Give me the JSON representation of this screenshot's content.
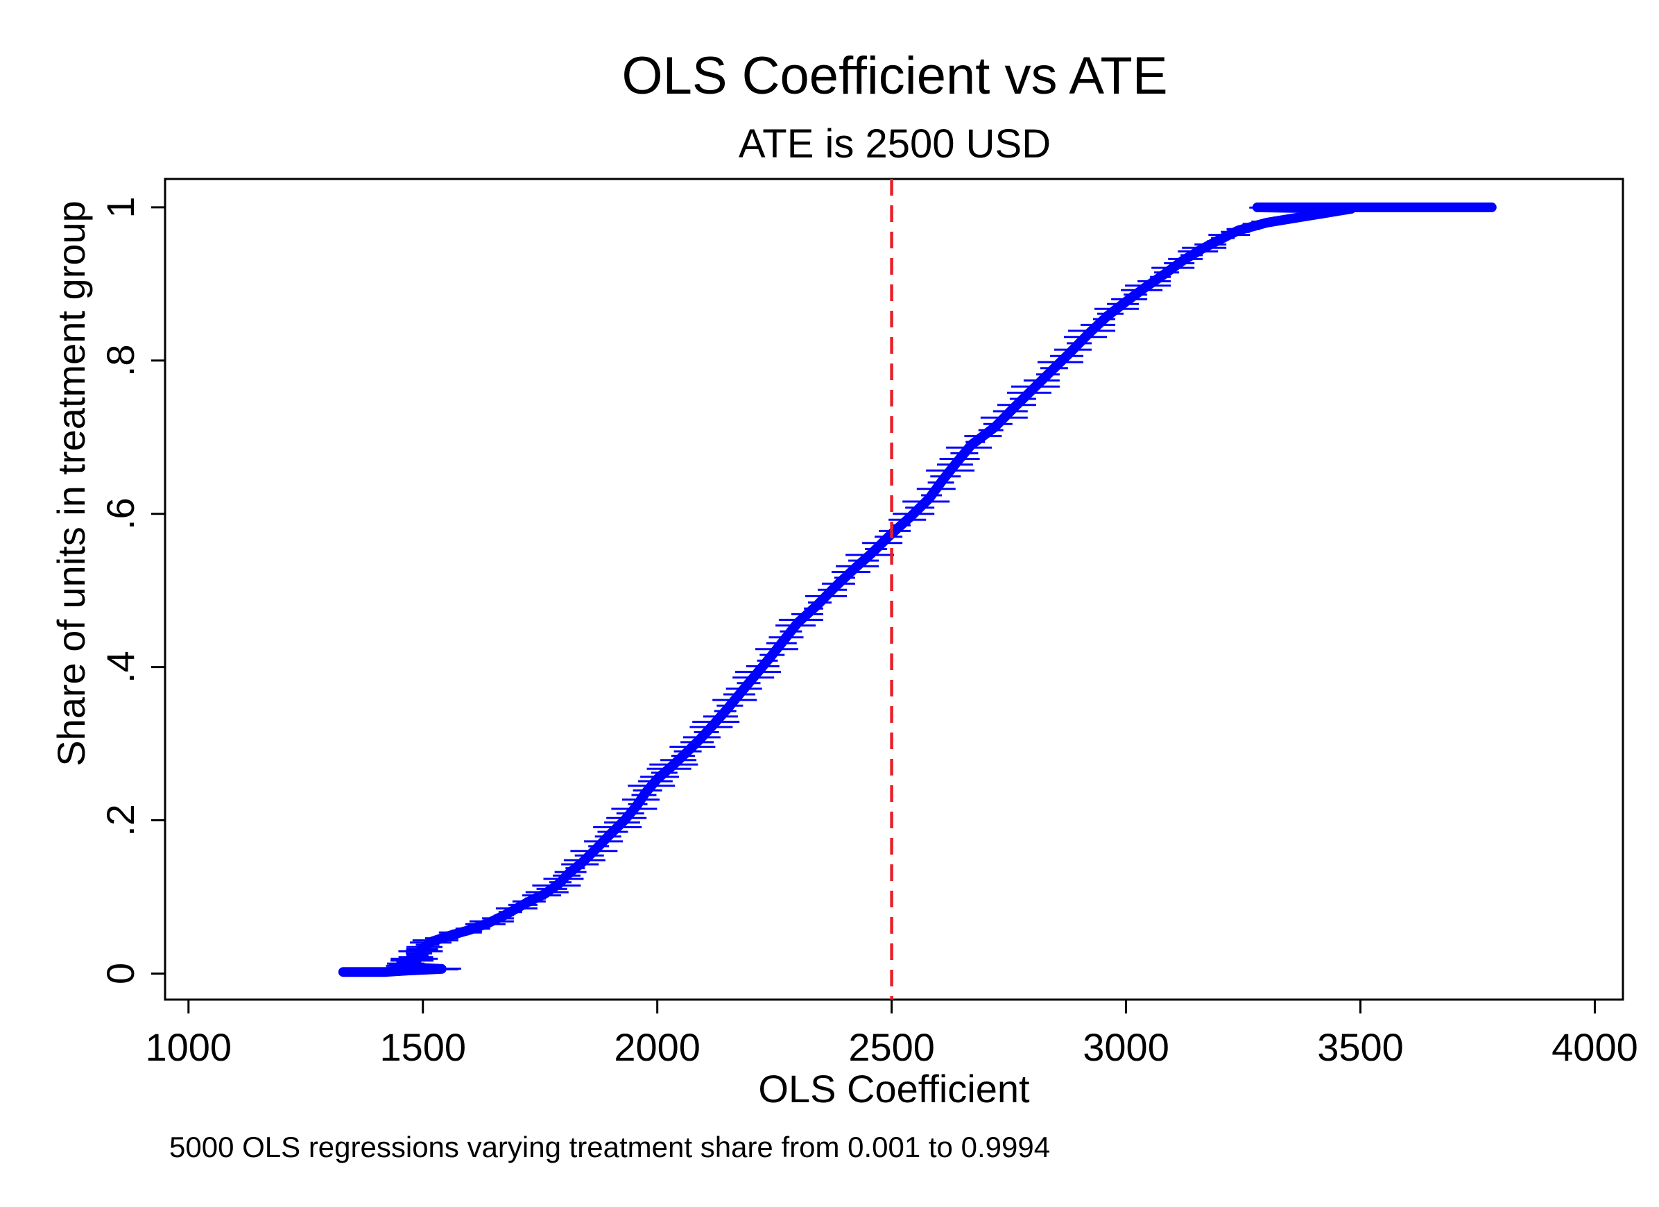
{
  "chart_data": {
    "type": "line",
    "title": "OLS Coefficient vs ATE",
    "subtitle": "ATE is 2500 USD",
    "xlabel": "OLS Coefficient",
    "ylabel": "Share of units in treatment group",
    "note": "5000 OLS regressions varying treatment share from 0.001 to 0.9994",
    "xlim": [
      950,
      4060
    ],
    "ylim": [
      -0.034,
      1.037
    ],
    "x_ticks": [
      1000,
      1500,
      2000,
      2500,
      3000,
      3500,
      4000
    ],
    "x_tick_labels": [
      "1000",
      "1500",
      "2000",
      "2500",
      "3000",
      "3500",
      "4000"
    ],
    "y_ticks": [
      0,
      0.2,
      0.4,
      0.6,
      0.8,
      1
    ],
    "y_tick_labels": [
      "0",
      ".2",
      ".4",
      ".6",
      ".8",
      "1"
    ],
    "grid": false,
    "reference_line": {
      "x": 2500,
      "style": "dashed",
      "color": "#e8202a"
    },
    "series": [
      {
        "color": "#0000ff",
        "points": [
          [
            1330,
            0.002
          ],
          [
            1420,
            0.002
          ],
          [
            1470,
            0.004
          ],
          [
            1540,
            0.006
          ],
          [
            1480,
            0.008
          ],
          [
            1460,
            0.012
          ],
          [
            1480,
            0.018
          ],
          [
            1490,
            0.025
          ],
          [
            1500,
            0.033
          ],
          [
            1520,
            0.042
          ],
          [
            1560,
            0.05
          ],
          [
            1600,
            0.057
          ],
          [
            1640,
            0.066
          ],
          [
            1680,
            0.078
          ],
          [
            1720,
            0.092
          ],
          [
            1760,
            0.104
          ],
          [
            1790,
            0.117
          ],
          [
            1810,
            0.13
          ],
          [
            1840,
            0.145
          ],
          [
            1870,
            0.163
          ],
          [
            1900,
            0.182
          ],
          [
            1930,
            0.2
          ],
          [
            1955,
            0.218
          ],
          [
            1975,
            0.236
          ],
          [
            2000,
            0.254
          ],
          [
            2030,
            0.27
          ],
          [
            2060,
            0.287
          ],
          [
            2090,
            0.305
          ],
          [
            2120,
            0.325
          ],
          [
            2150,
            0.346
          ],
          [
            2180,
            0.368
          ],
          [
            2210,
            0.39
          ],
          [
            2240,
            0.412
          ],
          [
            2270,
            0.435
          ],
          [
            2300,
            0.458
          ],
          [
            2340,
            0.48
          ],
          [
            2380,
            0.505
          ],
          [
            2420,
            0.528
          ],
          [
            2460,
            0.55
          ],
          [
            2500,
            0.574
          ],
          [
            2540,
            0.596
          ],
          [
            2580,
            0.62
          ],
          [
            2610,
            0.645
          ],
          [
            2640,
            0.668
          ],
          [
            2670,
            0.69
          ],
          [
            2720,
            0.713
          ],
          [
            2760,
            0.738
          ],
          [
            2800,
            0.762
          ],
          [
            2840,
            0.786
          ],
          [
            2880,
            0.81
          ],
          [
            2920,
            0.835
          ],
          [
            2960,
            0.858
          ],
          [
            3000,
            0.877
          ],
          [
            3040,
            0.895
          ],
          [
            3080,
            0.912
          ],
          [
            3120,
            0.93
          ],
          [
            3160,
            0.945
          ],
          [
            3200,
            0.958
          ],
          [
            3240,
            0.97
          ],
          [
            3300,
            0.98
          ],
          [
            3380,
            0.988
          ],
          [
            3450,
            0.995
          ],
          [
            3480,
            0.998
          ],
          [
            3280,
            1.0
          ],
          [
            3780,
            1.0
          ]
        ]
      }
    ]
  }
}
